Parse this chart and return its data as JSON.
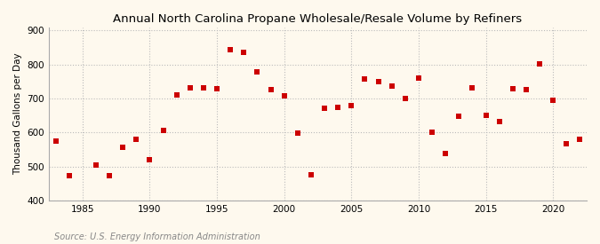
{
  "title": "Annual North Carolina Propane Wholesale/Resale Volume by Refiners",
  "ylabel": "Thousand Gallons per Day",
  "source": "Source: U.S. Energy Information Administration",
  "xlim": [
    1982.5,
    2022.5
  ],
  "ylim": [
    400,
    910
  ],
  "yticks": [
    400,
    500,
    600,
    700,
    800,
    900
  ],
  "xticks": [
    1985,
    1990,
    1995,
    2000,
    2005,
    2010,
    2015,
    2020
  ],
  "years": [
    1983,
    1984,
    1986,
    1987,
    1988,
    1989,
    1990,
    1991,
    1992,
    1993,
    1994,
    1995,
    1996,
    1997,
    1998,
    1999,
    2000,
    2001,
    2002,
    2003,
    2004,
    2005,
    2006,
    2007,
    2008,
    2009,
    2010,
    2011,
    2012,
    2013,
    2014,
    2015,
    2016,
    2017,
    2018,
    2019,
    2020,
    2021,
    2022
  ],
  "values": [
    575,
    473,
    503,
    472,
    557,
    580,
    519,
    605,
    710,
    730,
    730,
    728,
    843,
    835,
    778,
    727,
    708,
    597,
    475,
    670,
    675,
    680,
    757,
    750,
    737,
    700,
    760,
    600,
    538,
    648,
    730,
    650,
    633,
    728,
    725,
    803,
    695,
    568,
    580
  ],
  "marker_color": "#cc0000",
  "marker_size": 18,
  "background_color": "#fef9ee",
  "grid_color": "#bbbbbb",
  "title_fontsize": 9.5,
  "label_fontsize": 7.5,
  "tick_fontsize": 7.5,
  "source_fontsize": 7,
  "source_color": "#888888"
}
